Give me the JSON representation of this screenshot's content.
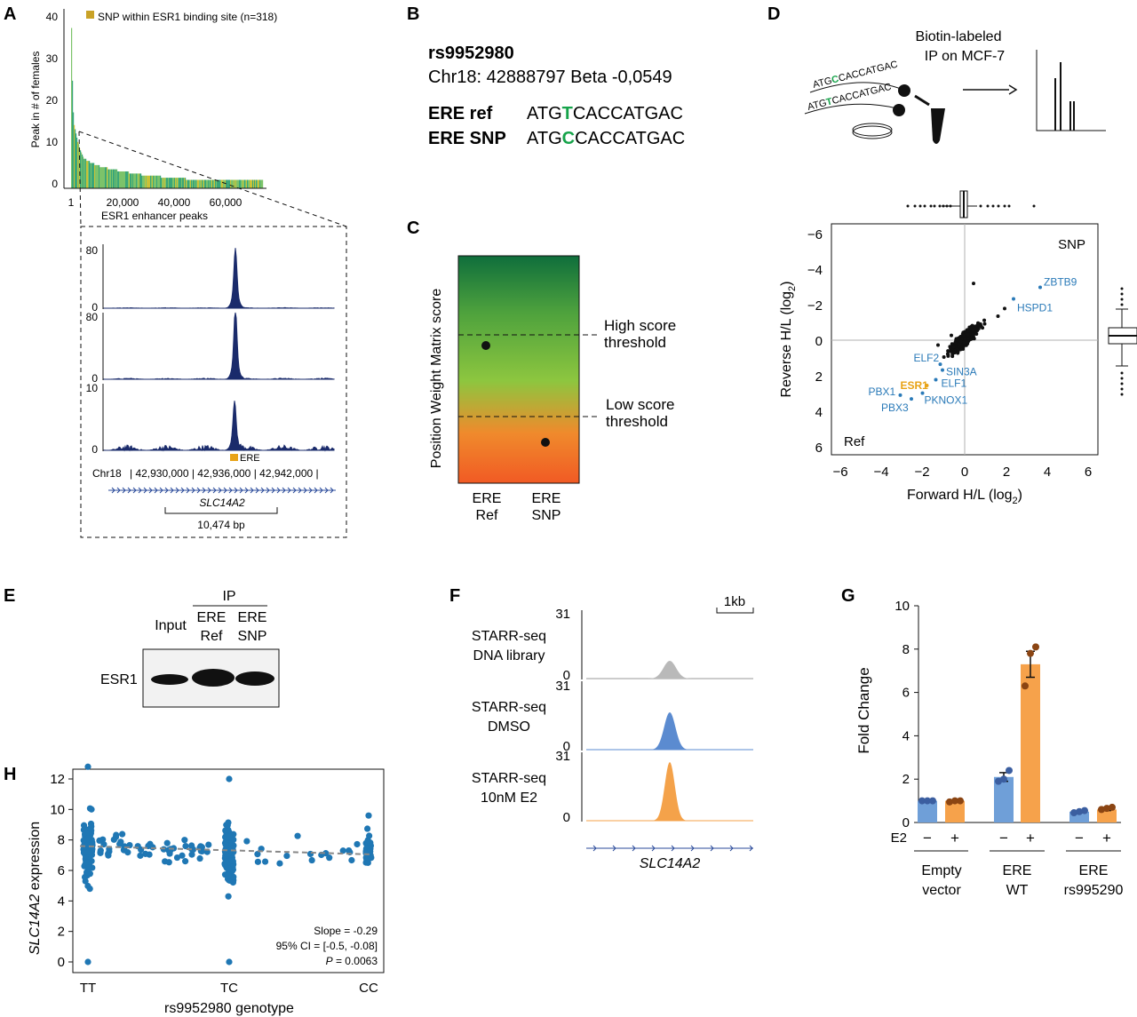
{
  "panels": {
    "A": {
      "letter": "A",
      "legend": "SNP within ESR1 binding site (n=318)",
      "ylabel": "Peak in # of females",
      "xlabel": "ESR1 enhancer peaks",
      "yticks": [
        "0",
        "10",
        "20",
        "30",
        "40"
      ],
      "xticks": [
        "1",
        "20,000",
        "40,000",
        "60,000"
      ],
      "tracks": [
        {
          "max": "80",
          "min": "0"
        },
        {
          "max": "80",
          "min": "0"
        },
        {
          "max": "10",
          "min": "0"
        }
      ],
      "ere_label": "ERE",
      "chr_label": "Chr18",
      "coords": "| 42,930,000 | 42,936,000 | 42,942,000 |",
      "gene": "SLC14A2",
      "length": "10,474 bp"
    },
    "B": {
      "letter": "B",
      "snp_id": "rs9952980",
      "location": "Chr18: 42888797 Beta -0,0549",
      "ref_label": "ERE ref",
      "snp_label": "ERE SNP",
      "ref_prefix": "ATG",
      "ref_base": "T",
      "ref_suffix": "CACCATGAC",
      "snp_prefix": "ATG",
      "snp_base": "C",
      "snp_suffix": "CACCATGAC"
    },
    "C": {
      "letter": "C",
      "ylabel": "Position Weight Matrix score",
      "high_line1": "High score",
      "high_line2": "threshold",
      "low_line1": "Low score",
      "low_line2": "threshold",
      "x1_line1": "ERE",
      "x1_line2": "Ref",
      "x2_line1": "ERE",
      "x2_line2": "SNP"
    },
    "D": {
      "letter": "D",
      "title_line1": "Biotin-labeled",
      "title_line2": "IP on MCF-7",
      "seq1_pre": "ATG",
      "seq1_base": "C",
      "seq1_post": "CACCATGAC",
      "seq2_pre": "ATG",
      "seq2_base": "T",
      "seq2_post": "CACCATGAC",
      "corner_snp": "SNP",
      "corner_ref": "Ref",
      "xlabel": "Forward H/L (log",
      "ylabel": "Reverse H/L (log",
      "sub": "2",
      "close": ")",
      "xticks": [
        "−6",
        "−4",
        "−2",
        "0",
        "2",
        "4",
        "6"
      ],
      "yticks": [
        "−6",
        "−4",
        "−2",
        "0",
        "2",
        "4",
        "6"
      ],
      "labels": [
        "ZBTB9",
        "HSPD1",
        "ELF2",
        "SIN3A",
        "ESR1",
        "ELF1",
        "PBX1",
        "PBX3",
        "PKNOX1"
      ]
    },
    "E": {
      "letter": "E",
      "ip": "IP",
      "input": "Input",
      "lane2_line1": "ERE",
      "lane2_line2": "Ref",
      "lane3_line1": "ERE",
      "lane3_line2": "SNP",
      "row_label": "ESR1"
    },
    "F": {
      "letter": "F",
      "scale": "1kb",
      "tracks": [
        {
          "line1": "STARR-seq",
          "line2": "DNA library",
          "max": "31",
          "min": "0",
          "color": "#b9b9b9"
        },
        {
          "line1": "STARR-seq",
          "line2": "DMSO",
          "max": "31",
          "min": "0",
          "color": "#5b8bd0"
        },
        {
          "line1": "STARR-seq",
          "line2": "10nM E2",
          "max": "31",
          "min": "0",
          "color": "#f4a24a"
        }
      ],
      "gene": "SLC14A2"
    },
    "G": {
      "letter": "G",
      "ylabel": "Fold Change",
      "yticks": [
        "0",
        "2",
        "4",
        "6",
        "8",
        "10"
      ],
      "e2_label": "E2",
      "minus": "−",
      "plus": "+",
      "groups": [
        {
          "line1": "Empty",
          "line2": "vector"
        },
        {
          "line1": "ERE",
          "line2": "WT"
        },
        {
          "line1": "ERE",
          "line2": "rs995290"
        }
      ]
    },
    "H": {
      "letter": "H",
      "ylabel_gene": "SLC14A2",
      "ylabel_rest": " expression",
      "xlabel": "rs9952980 genotype",
      "yticks": [
        "0",
        "2",
        "4",
        "6",
        "8",
        "10",
        "12"
      ],
      "xticks": [
        "TT",
        "TC",
        "CC"
      ],
      "stat1": "Slope = -0.29",
      "stat2": "95% CI = [-0.5, -0.08]",
      "stat3_italic": "P",
      "stat3_rest": " = 0.0063"
    }
  },
  "colors": {
    "navy": "#1a2b6b",
    "green_dark": "#1d8a3f",
    "green_mid": "#8dc63f",
    "orange": "#f15a24",
    "snp_green": "#16a34a",
    "esr1_orange": "#e8a317",
    "label_blue": "#2a7ab8",
    "bar_blue": "#6f9fd8",
    "bar_orange": "#f6a24b",
    "dot_blue": "#3b5ea0",
    "dot_brown": "#8b4513",
    "scatter_blue": "#1f77b4"
  },
  "chart_data": [
    {
      "panel": "A",
      "type": "bar",
      "ylim": [
        0,
        40
      ],
      "xlim": [
        1,
        75000
      ],
      "x_scale": "linear",
      "shape": "decreasing: first peak ~38, falls to ~12 by 2,000, ~5 by 10,000, ~2 from 40,000 to 75,000",
      "x": [
        1,
        500,
        1000,
        2000,
        3500,
        5000,
        8000,
        12000,
        20000,
        30000,
        40000,
        50000,
        60000,
        75000
      ],
      "values": [
        38,
        20,
        15,
        12,
        9,
        7,
        6,
        5,
        4,
        3,
        2.5,
        2,
        2,
        2
      ]
    },
    {
      "panel": "D",
      "type": "scatter",
      "xlim": [
        -6,
        6
      ],
      "ylim": [
        6,
        -6
      ],
      "points": [
        {
          "name": "ZBTB9",
          "x": 3.4,
          "y": -2.7
        },
        {
          "name": "HSPD1",
          "x": 2.2,
          "y": -2.1
        },
        {
          "name": "ELF2",
          "x": -1.1,
          "y": 1.3
        },
        {
          "name": "SIN3A",
          "x": -1.0,
          "y": 1.6
        },
        {
          "name": "ESR1",
          "x": -1.7,
          "y": 2.4
        },
        {
          "name": "ELF1",
          "x": -1.3,
          "y": 2.1
        },
        {
          "name": "PBX1",
          "x": -2.9,
          "y": 2.9
        },
        {
          "name": "PBX3",
          "x": -2.4,
          "y": 3.1
        },
        {
          "name": "PKNOX1",
          "x": -1.9,
          "y": 2.8
        }
      ]
    },
    {
      "panel": "G",
      "type": "bar",
      "ylim": [
        0,
        10
      ],
      "categories": [
        "Empty vector",
        "ERE WT",
        "ERE rs995290"
      ],
      "series": [
        {
          "name": "−",
          "values": [
            1.0,
            2.1,
            0.5
          ],
          "errors": [
            0.0,
            0.2,
            0.05
          ],
          "points": [
            [
              1.0,
              1.0,
              1.0
            ],
            [
              1.9,
              2.0,
              2.4
            ],
            [
              0.45,
              0.5,
              0.55
            ]
          ]
        },
        {
          "name": "+",
          "values": [
            1.0,
            7.3,
            0.6
          ],
          "errors": [
            0.0,
            0.6,
            0.05
          ],
          "points": [
            [
              0.95,
              1.0,
              1.0
            ],
            [
              6.3,
              7.8,
              8.1
            ],
            [
              0.6,
              0.65,
              0.7
            ]
          ]
        }
      ]
    },
    {
      "panel": "H",
      "type": "scatter",
      "xlim": [
        "TT",
        "CC"
      ],
      "ylim": [
        0,
        13
      ],
      "categories": [
        "TT",
        "TC",
        "CC"
      ],
      "trend": {
        "slope": -0.29,
        "start": 7.6,
        "end": 7.05
      },
      "ranges": [
        [
          4.8,
          12.8
        ],
        [
          4.2,
          12.0
        ],
        [
          5.0,
          9.6
        ]
      ],
      "outliers": [
        0,
        0
      ]
    }
  ]
}
